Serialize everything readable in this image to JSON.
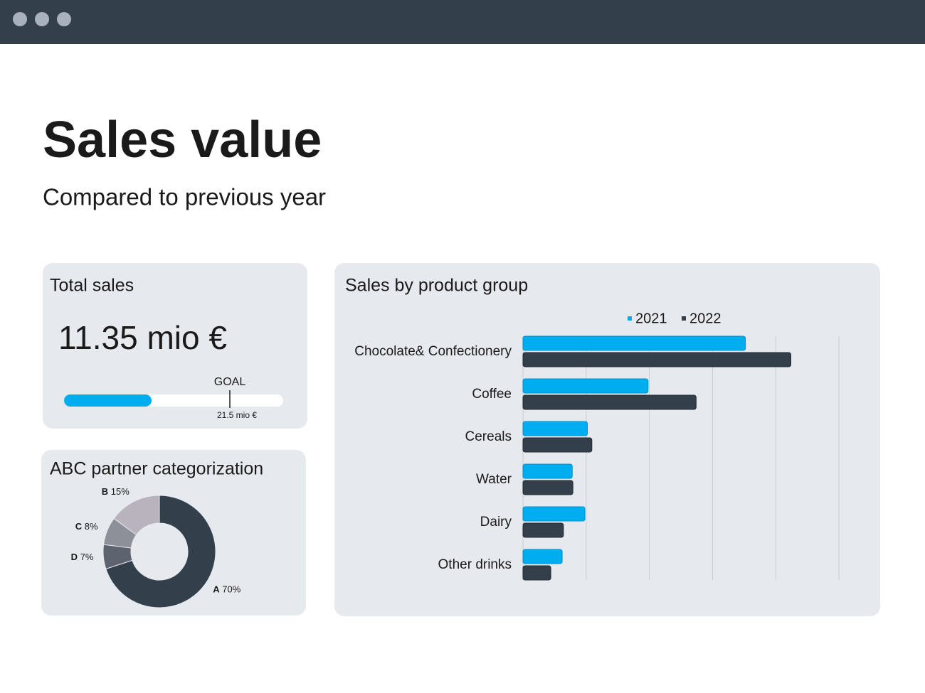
{
  "header": {
    "title": "Sales value",
    "subtitle": "Compared to previous year"
  },
  "total_sales": {
    "title": "Total sales",
    "value": 11.35,
    "value_label": "11.35 mio €",
    "goal_title": "GOAL",
    "goal": 21.5,
    "goal_label": "21.5 mio €",
    "color": "#00aeef"
  },
  "chart_data": [
    {
      "type": "pie",
      "title": "ABC partner categorization",
      "categories": [
        "A",
        "D",
        "C",
        "B"
      ],
      "values": [
        70,
        7,
        8,
        15
      ],
      "value_labels": [
        "70%",
        "7%",
        "8%",
        "15%"
      ],
      "colors": [
        "#333f4a",
        "#5d6470",
        "#8d8f99",
        "#b8b3bd"
      ]
    },
    {
      "type": "bar",
      "orientation": "horizontal",
      "title": "Sales by product group",
      "categories": [
        "Chocolate& Confectionery",
        "Coffee",
        "Cereals",
        "Water",
        "Dairy",
        "Other drinks"
      ],
      "series": [
        {
          "name": "2021",
          "color": "#00aeef",
          "values": [
            3.52,
            1.98,
            1.02,
            0.78,
            0.98,
            0.62
          ]
        },
        {
          "name": "2022",
          "color": "#333f4a",
          "values": [
            4.24,
            2.74,
            1.09,
            0.79,
            0.64,
            0.44
          ]
        }
      ],
      "xlim": [
        0,
        5
      ],
      "xticks": [
        1,
        2,
        3,
        4,
        5
      ],
      "grid": true
    }
  ]
}
